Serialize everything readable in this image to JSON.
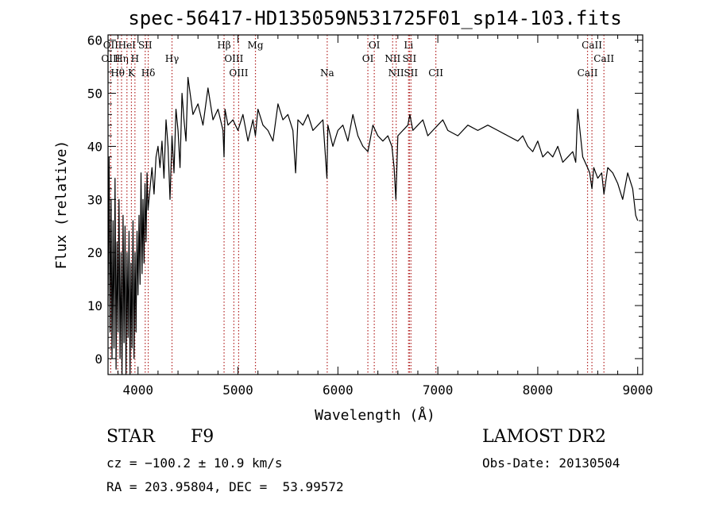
{
  "chart_data": {
    "type": "line",
    "title": "spec-56417-HD135059N531725F01_sp14-103.fits",
    "xlabel": "Wavelength (Å)",
    "ylabel": "Flux (relative)",
    "xlim": [
      3700,
      9050
    ],
    "ylim": [
      -3,
      61
    ],
    "xticks": [
      4000,
      5000,
      6000,
      7000,
      8000,
      9000
    ],
    "yticks": [
      0,
      10,
      20,
      30,
      40,
      50,
      60
    ],
    "line_color": "#000000",
    "marker_color": "#b22222",
    "spectrum": {
      "x": [
        3700,
        3710,
        3720,
        3730,
        3740,
        3750,
        3760,
        3770,
        3780,
        3790,
        3800,
        3810,
        3820,
        3830,
        3840,
        3850,
        3860,
        3870,
        3880,
        3890,
        3900,
        3910,
        3920,
        3930,
        3940,
        3950,
        3960,
        3970,
        3980,
        3990,
        4000,
        4010,
        4020,
        4030,
        4040,
        4050,
        4060,
        4070,
        4080,
        4090,
        4100,
        4120,
        4140,
        4160,
        4180,
        4200,
        4220,
        4240,
        4260,
        4280,
        4300,
        4320,
        4340,
        4360,
        4380,
        4400,
        4420,
        4440,
        4460,
        4480,
        4500,
        4550,
        4600,
        4650,
        4700,
        4750,
        4800,
        4850,
        4861,
        4870,
        4900,
        4950,
        5000,
        5050,
        5100,
        5150,
        5175,
        5200,
        5250,
        5300,
        5350,
        5400,
        5450,
        5500,
        5550,
        5577,
        5600,
        5650,
        5700,
        5750,
        5800,
        5850,
        5890,
        5900,
        5950,
        6000,
        6050,
        6100,
        6150,
        6200,
        6250,
        6300,
        6350,
        6400,
        6450,
        6500,
        6540,
        6563,
        6580,
        6600,
        6650,
        6700,
        6720,
        6750,
        6800,
        6850,
        6900,
        6950,
        7000,
        7050,
        7100,
        7200,
        7300,
        7400,
        7500,
        7600,
        7700,
        7800,
        7850,
        7900,
        7950,
        8000,
        8050,
        8100,
        8150,
        8200,
        8250,
        8300,
        8350,
        8380,
        8400,
        8450,
        8498,
        8520,
        8542,
        8560,
        8600,
        8640,
        8662,
        8700,
        8750,
        8800,
        8850,
        8900,
        8950,
        8980,
        9000
      ],
      "y": [
        10,
        38,
        5,
        30,
        0,
        26,
        2,
        34,
        -2,
        22,
        5,
        30,
        0,
        20,
        -3,
        27,
        3,
        25,
        -3,
        20,
        4,
        24,
        -3,
        18,
        2,
        26,
        0,
        20,
        5,
        24,
        12,
        27,
        14,
        35,
        16,
        30,
        18,
        33,
        22,
        35,
        28,
        32,
        36,
        31,
        38,
        40,
        36,
        41,
        34,
        45,
        40,
        30,
        42,
        35,
        47,
        43,
        36,
        50,
        45,
        41,
        53,
        46,
        48,
        44,
        51,
        45,
        47,
        43,
        38,
        47,
        44,
        45,
        43,
        46,
        41,
        45,
        42,
        47,
        44,
        43,
        41,
        48,
        45,
        46,
        43,
        35,
        45,
        44,
        46,
        43,
        44,
        45,
        34,
        44,
        40,
        43,
        44,
        41,
        46,
        42,
        40,
        39,
        44,
        42,
        41,
        42,
        40,
        36,
        30,
        42,
        43,
        44,
        46,
        43,
        44,
        45,
        42,
        43,
        44,
        45,
        43,
        42,
        44,
        43,
        44,
        43,
        42,
        41,
        42,
        40,
        39,
        41,
        38,
        39,
        38,
        40,
        37,
        38,
        39,
        37,
        47,
        38,
        36,
        35,
        32,
        36,
        34,
        35,
        31,
        36,
        35,
        33,
        30,
        35,
        32,
        27,
        26
      ]
    },
    "line_markers": [
      {
        "label": "OII",
        "x": 3727,
        "row": 1
      },
      {
        "label": "OIII",
        "x": 3727,
        "row": 2
      },
      {
        "label": "Hθ",
        "x": 3797,
        "row": 3
      },
      {
        "label": "Hη",
        "x": 3835,
        "row": 2
      },
      {
        "label": "HeI",
        "x": 3889,
        "row": 1
      },
      {
        "label": "K",
        "x": 3934,
        "row": 3
      },
      {
        "label": "H",
        "x": 3969,
        "row": 2
      },
      {
        "label": "SII",
        "x": 4072,
        "row": 1
      },
      {
        "label": "Hδ",
        "x": 4102,
        "row": 3
      },
      {
        "label": "Hγ",
        "x": 4340,
        "row": 2
      },
      {
        "label": "Hβ",
        "x": 4861,
        "row": 1
      },
      {
        "label": "OIII",
        "x": 4959,
        "row": 2
      },
      {
        "label": "OIII",
        "x": 5007,
        "row": 3
      },
      {
        "label": "Mg",
        "x": 5175,
        "row": 1
      },
      {
        "label": "Na",
        "x": 5893,
        "row": 3
      },
      {
        "label": "OI",
        "x": 6300,
        "row": 2
      },
      {
        "label": "OI",
        "x": 6364,
        "row": 1
      },
      {
        "label": "NII",
        "x": 6548,
        "row": 2
      },
      {
        "label": "NII",
        "x": 6583,
        "row": 3
      },
      {
        "label": "Li",
        "x": 6707,
        "row": 1
      },
      {
        "label": "SII",
        "x": 6716,
        "row": 2
      },
      {
        "label": "SII",
        "x": 6731,
        "row": 3
      },
      {
        "label": "CII",
        "x": 6980,
        "row": 3
      },
      {
        "label": "CaII",
        "x": 8498,
        "row": 3
      },
      {
        "label": "CaII",
        "x": 8542,
        "row": 1
      },
      {
        "label": "CaII",
        "x": 8662,
        "row": 2
      }
    ]
  },
  "info": {
    "object_class": "STAR",
    "subclass": "F9",
    "cz": "cz = −100.2 ± 10.9 km/s",
    "radec": "RA = 203.95804, DEC =  53.99572",
    "survey": "LAMOST DR2",
    "obs_date": "Obs-Date: 20130504"
  }
}
